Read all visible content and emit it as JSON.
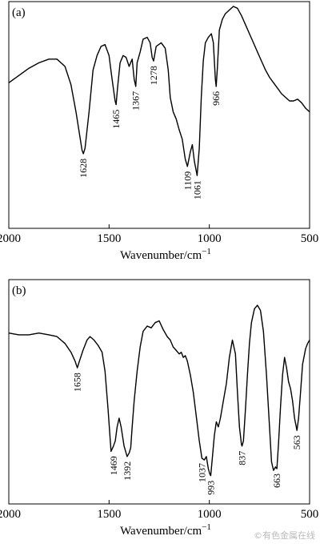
{
  "chart_data": [
    {
      "type": "line",
      "panel_label": "(a)",
      "xlabel": "Wavenumber/cm",
      "xlabel_sup": "−1",
      "xlim": [
        2000,
        500
      ],
      "x_ticks": [
        2000,
        1500,
        1000,
        500
      ],
      "x_tick_labels": [
        "2000",
        "1500",
        "1000",
        "500"
      ],
      "series": [
        {
          "x": [
            2000,
            1950,
            1900,
            1850,
            1800,
            1760,
            1720,
            1690,
            1665,
            1645,
            1635,
            1628,
            1620,
            1600,
            1580,
            1560,
            1540,
            1520,
            1500,
            1485,
            1470,
            1465,
            1458,
            1445,
            1430,
            1415,
            1400,
            1385,
            1375,
            1367,
            1360,
            1345,
            1330,
            1310,
            1295,
            1285,
            1278,
            1265,
            1240,
            1220,
            1205,
            1195,
            1180,
            1165,
            1150,
            1135,
            1120,
            1109,
            1095,
            1085,
            1075,
            1061,
            1050,
            1040,
            1030,
            1020,
            1005,
            990,
            980,
            970,
            966,
            960,
            950,
            935,
            920,
            900,
            880,
            860,
            840,
            820,
            800,
            780,
            760,
            740,
            720,
            700,
            680,
            660,
            640,
            620,
            600,
            580,
            560,
            540,
            520,
            500
          ],
          "y": [
            0.58,
            0.62,
            0.66,
            0.69,
            0.71,
            0.71,
            0.67,
            0.57,
            0.42,
            0.28,
            0.21,
            0.19,
            0.22,
            0.42,
            0.65,
            0.73,
            0.78,
            0.79,
            0.73,
            0.6,
            0.48,
            0.46,
            0.55,
            0.69,
            0.73,
            0.72,
            0.67,
            0.71,
            0.6,
            0.56,
            0.69,
            0.75,
            0.82,
            0.83,
            0.8,
            0.72,
            0.7,
            0.78,
            0.8,
            0.77,
            0.65,
            0.5,
            0.42,
            0.38,
            0.32,
            0.27,
            0.16,
            0.12,
            0.2,
            0.24,
            0.15,
            0.07,
            0.22,
            0.5,
            0.7,
            0.8,
            0.83,
            0.85,
            0.8,
            0.6,
            0.56,
            0.66,
            0.87,
            0.93,
            0.96,
            0.98,
            1.0,
            0.99,
            0.95,
            0.9,
            0.85,
            0.8,
            0.75,
            0.7,
            0.65,
            0.61,
            0.58,
            0.55,
            0.52,
            0.5,
            0.48,
            0.48,
            0.49,
            0.47,
            0.44,
            0.42
          ]
        }
      ],
      "annotations": [
        {
          "text": "1628",
          "x": 1628,
          "y": 0.19
        },
        {
          "text": "1465",
          "x": 1465,
          "y": 0.46
        },
        {
          "text": "1367",
          "x": 1367,
          "y": 0.56
        },
        {
          "text": "1278",
          "x": 1278,
          "y": 0.7
        },
        {
          "text": "1109",
          "x": 1109,
          "y": 0.12
        },
        {
          "text": "1061",
          "x": 1061,
          "y": 0.07
        },
        {
          "text": "966",
          "x": 966,
          "y": 0.56
        }
      ]
    },
    {
      "type": "line",
      "panel_label": "(b)",
      "xlabel": "Wavenumber/cm",
      "xlabel_sup": "−1",
      "xlim": [
        2000,
        500
      ],
      "x_ticks": [
        2000,
        1500,
        1000,
        500
      ],
      "x_tick_labels": [
        "2000",
        "1500",
        "1000",
        "500"
      ],
      "series": [
        {
          "x": [
            2000,
            1950,
            1900,
            1850,
            1800,
            1760,
            1720,
            1690,
            1670,
            1658,
            1650,
            1630,
            1610,
            1595,
            1575,
            1555,
            1535,
            1520,
            1505,
            1490,
            1478,
            1469,
            1460,
            1450,
            1440,
            1425,
            1410,
            1400,
            1392,
            1385,
            1375,
            1360,
            1345,
            1330,
            1310,
            1290,
            1270,
            1250,
            1230,
            1210,
            1195,
            1180,
            1165,
            1150,
            1140,
            1130,
            1120,
            1110,
            1095,
            1080,
            1065,
            1050,
            1037,
            1025,
            1015,
            1005,
            998,
            993,
            985,
            975,
            965,
            955,
            945,
            930,
            915,
            900,
            885,
            870,
            860,
            850,
            840,
            837,
            830,
            820,
            810,
            800,
            790,
            775,
            760,
            745,
            730,
            715,
            700,
            690,
            680,
            670,
            663,
            655,
            645,
            635,
            625,
            615,
            605,
            595,
            585,
            575,
            563,
            555,
            545,
            535,
            520,
            510,
            500
          ],
          "y": [
            0.84,
            0.83,
            0.83,
            0.84,
            0.83,
            0.82,
            0.78,
            0.73,
            0.68,
            0.64,
            0.67,
            0.74,
            0.8,
            0.82,
            0.8,
            0.77,
            0.73,
            0.62,
            0.4,
            0.16,
            0.19,
            0.22,
            0.3,
            0.35,
            0.3,
            0.19,
            0.13,
            0.15,
            0.18,
            0.3,
            0.45,
            0.62,
            0.76,
            0.85,
            0.88,
            0.87,
            0.9,
            0.91,
            0.86,
            0.82,
            0.8,
            0.76,
            0.74,
            0.72,
            0.73,
            0.7,
            0.71,
            0.68,
            0.6,
            0.5,
            0.36,
            0.22,
            0.12,
            0.11,
            0.13,
            0.06,
            0.03,
            0.02,
            0.12,
            0.25,
            0.33,
            0.3,
            0.35,
            0.45,
            0.55,
            0.7,
            0.8,
            0.72,
            0.5,
            0.3,
            0.2,
            0.19,
            0.22,
            0.4,
            0.6,
            0.78,
            0.9,
            0.98,
            1.0,
            0.97,
            0.85,
            0.6,
            0.3,
            0.1,
            0.05,
            0.07,
            0.06,
            0.2,
            0.42,
            0.6,
            0.7,
            0.64,
            0.56,
            0.52,
            0.45,
            0.35,
            0.28,
            0.35,
            0.5,
            0.66,
            0.75,
            0.78,
            0.8
          ]
        }
      ],
      "annotations": [
        {
          "text": "1658",
          "x": 1658,
          "y": 0.64
        },
        {
          "text": "1469",
          "x": 1478,
          "y": 0.16
        },
        {
          "text": "1392",
          "x": 1410,
          "y": 0.13
        },
        {
          "text": "1037",
          "x": 1037,
          "y": 0.12
        },
        {
          "text": "993",
          "x": 993,
          "y": 0.02
        },
        {
          "text": "837",
          "x": 837,
          "y": 0.19
        },
        {
          "text": "663",
          "x": 663,
          "y": 0.06
        },
        {
          "text": "563",
          "x": 563,
          "y": 0.28
        }
      ]
    }
  ],
  "watermark": "©有色金属在线"
}
